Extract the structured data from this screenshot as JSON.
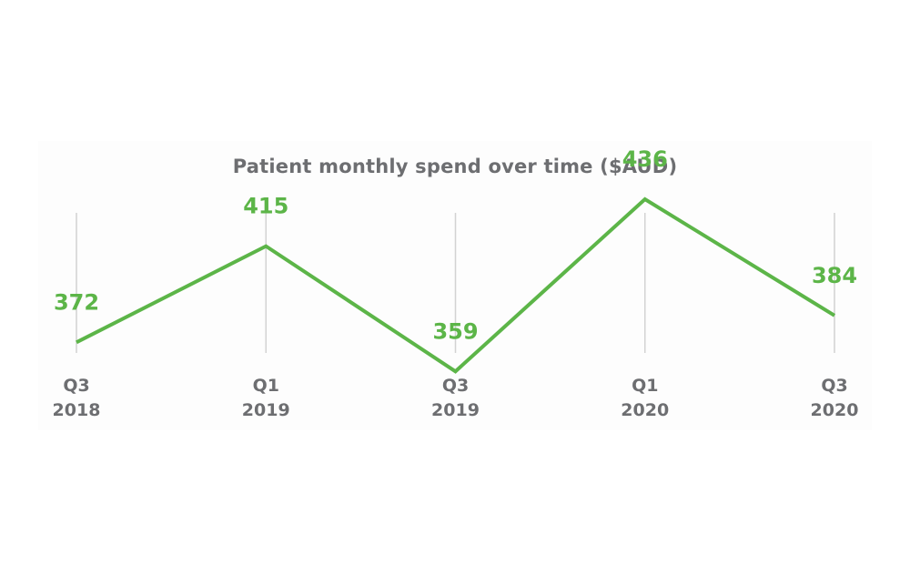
{
  "chart_data": {
    "type": "line",
    "title": "Patient monthly spend over time ($AUD)",
    "xlabel": "",
    "ylabel": "",
    "categories": [
      [
        "Q3",
        "2018"
      ],
      [
        "Q1",
        "2019"
      ],
      [
        "Q3",
        "2019"
      ],
      [
        "Q1",
        "2020"
      ],
      [
        "Q3",
        "2020"
      ]
    ],
    "series": [
      {
        "values": [
          372,
          415,
          359,
          436,
          384
        ],
        "labels": [
          "372",
          "415",
          "359",
          "436",
          "384"
        ]
      }
    ],
    "ylim": [
      340,
      460
    ],
    "grid": "vertical",
    "legend": "none",
    "colors": {
      "line": "#5cb548",
      "gridline": "#d2d2d2",
      "text": "#6d6e71"
    }
  }
}
